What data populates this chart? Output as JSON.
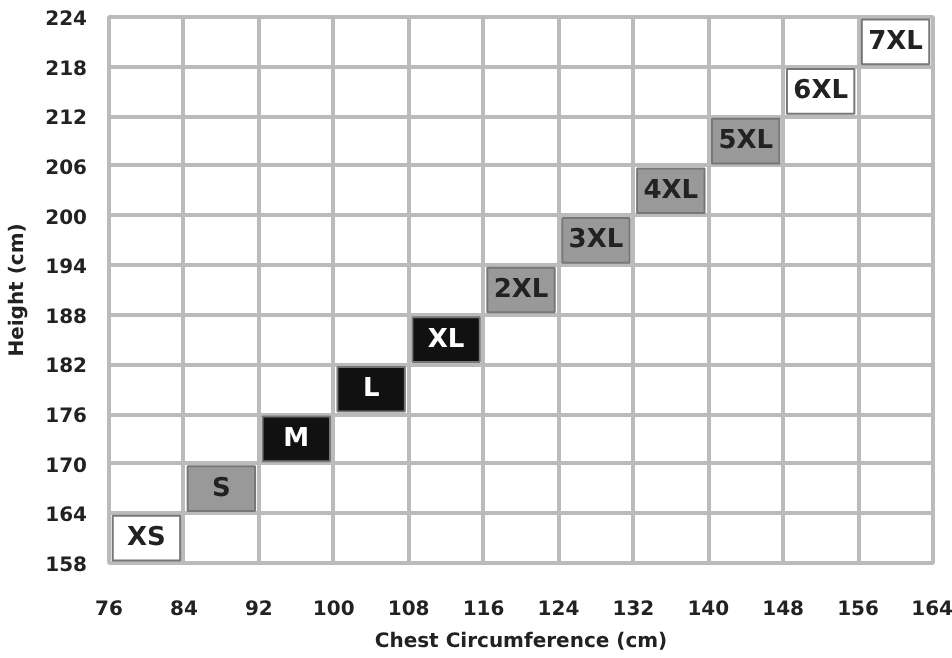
{
  "chart_data": {
    "type": "scatter",
    "xlabel": "Chest Circumference (cm)",
    "ylabel": "Height (cm)",
    "x": [
      80,
      88,
      96,
      104,
      112,
      120,
      128,
      136,
      144,
      152,
      160
    ],
    "values": [
      161,
      167,
      173,
      179,
      185,
      191,
      197,
      203,
      209,
      215,
      221
    ],
    "annotations": [
      {
        "text": "XS",
        "x": 80,
        "y": 161
      },
      {
        "text": "S",
        "x": 88,
        "y": 167
      },
      {
        "text": "M",
        "x": 96,
        "y": 173
      },
      {
        "text": "L",
        "x": 104,
        "y": 179
      },
      {
        "text": "XL",
        "x": 112,
        "y": 185
      },
      {
        "text": "2XL",
        "x": 120,
        "y": 191
      },
      {
        "text": "3XL",
        "x": 128,
        "y": 197
      },
      {
        "text": "4XL",
        "x": 136,
        "y": 203
      },
      {
        "text": "5XL",
        "x": 144,
        "y": 209
      },
      {
        "text": "6XL",
        "x": 152,
        "y": 215
      },
      {
        "text": "7XL",
        "x": 160,
        "y": 221
      }
    ],
    "colors": [
      "#ffffff",
      "#999999",
      "#111111",
      "#111111",
      "#111111",
      "#999999",
      "#999999",
      "#999999",
      "#999999",
      "#ffffff",
      "#ffffff"
    ],
    "marker": "square",
    "grid": true,
    "xlim": [
      76,
      164
    ],
    "ylim": [
      158,
      224
    ],
    "xticks": [
      76,
      84,
      92,
      100,
      108,
      116,
      124,
      132,
      140,
      148,
      156,
      164
    ],
    "yticks": [
      158,
      164,
      170,
      176,
      182,
      188,
      194,
      200,
      206,
      212,
      218,
      224
    ]
  }
}
